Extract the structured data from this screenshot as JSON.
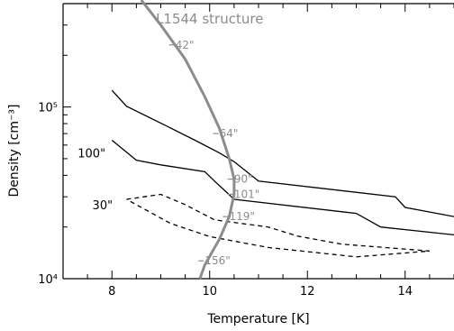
{
  "chart_data": {
    "type": "line",
    "title": "",
    "xlabel": "Temperature [K]",
    "ylabel": "Density [cm⁻³]",
    "xlim": [
      7,
      15
    ],
    "ylim": [
      10000,
      400000
    ],
    "y_scale": "log",
    "x_ticks": [
      8,
      10,
      12,
      14
    ],
    "x_tick_labels": [
      "8",
      "10",
      "12",
      "14"
    ],
    "y_ticks": [
      10000,
      100000
    ],
    "y_tick_labels": [
      "10⁴",
      "10⁵"
    ],
    "series": [
      {
        "name": "100\"",
        "style": "solid",
        "color": "#000000",
        "x": [
          8.0,
          8.3,
          9.1,
          9.7,
          10.2,
          10.5,
          11.0,
          13.8,
          14.0,
          15.0
        ],
        "y": [
          125000,
          101000,
          78000,
          64000,
          54000,
          48000,
          37000,
          30000,
          26000,
          23000
        ]
      },
      {
        "name": "100\"",
        "style": "solid",
        "color": "#000000",
        "x": [
          8.0,
          8.5,
          9.0,
          9.9,
          10.1,
          10.5,
          13.0,
          13.5,
          15.0
        ],
        "y": [
          64000,
          49000,
          46000,
          42000,
          37000,
          29000,
          24000,
          20000,
          18000
        ]
      },
      {
        "name": "30\"",
        "style": "dashed",
        "color": "#000000",
        "x": [
          8.3,
          9.0,
          9.5,
          10.1,
          11.2,
          11.8,
          12.7,
          14.5,
          13.0,
          11.2,
          10.0,
          9.2,
          8.3
        ],
        "y": [
          29000,
          31000,
          27000,
          22000,
          20000,
          17700,
          15900,
          14500,
          13400,
          15200,
          17600,
          21000,
          29000
        ]
      }
    ],
    "series_labels": [
      {
        "text": "100\"",
        "x": 7.3,
        "y": 54000
      },
      {
        "text": "30\"",
        "x": 7.6,
        "y": 27000
      }
    ],
    "structure": {
      "name": "L1544 structure",
      "color": "#8c8c8c",
      "x": [
        8.6,
        9.0,
        9.5,
        9.9,
        10.2,
        10.4,
        10.5,
        10.5,
        10.4,
        10.2,
        9.9,
        9.8
      ],
      "y": [
        420000,
        300000,
        190000,
        115000,
        75000,
        50000,
        38000,
        31000,
        23000,
        17000,
        12000,
        10000
      ],
      "labels": [
        {
          "text": "42\"",
          "x": 9.3,
          "y": 230000
        },
        {
          "text": "64\"",
          "x": 10.2,
          "y": 70000
        },
        {
          "text": "90\"",
          "x": 10.5,
          "y": 38000
        },
        {
          "text": "101\"",
          "x": 10.5,
          "y": 31000
        },
        {
          "text": "119\"",
          "x": 10.4,
          "y": 23000
        },
        {
          "text": "156\"",
          "x": 9.9,
          "y": 12700
        }
      ]
    }
  }
}
